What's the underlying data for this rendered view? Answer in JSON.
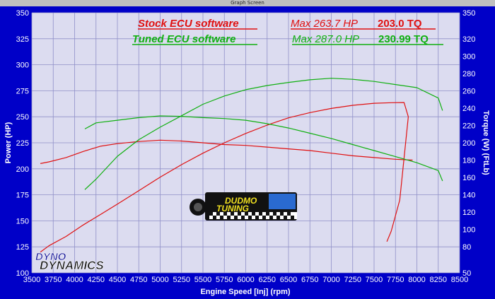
{
  "window": {
    "title": "Graph Screen"
  },
  "colors": {
    "stock": "#e01010",
    "tuned": "#10b010",
    "plot_bg": "#dcdcf0",
    "frame_bg": "#0000c8"
  },
  "legend": {
    "stock_label": "Stock ECU software",
    "tuned_label": "Tuned ECU software",
    "stock_max_hp": "Max 263.7 HP",
    "stock_max_tq": "203.0 TQ",
    "tuned_max_hp": "Max 287.0 HP",
    "tuned_max_tq": "230.99 TQ"
  },
  "logos": {
    "dyno_top": "DYNO",
    "dyno_bottom": "DYNAMICS",
    "tuner_top": "DUDMO",
    "tuner_bottom": "TUNING"
  },
  "chart_data": {
    "type": "line",
    "xlabel": "Engine Speed [Inj] (rpm)",
    "ylabel_left": "Power (HP)",
    "ylabel_right": "Torque (W) (FtLb)",
    "xlim": [
      3500,
      8500
    ],
    "ylim_left": [
      100,
      350
    ],
    "ylim_right": [
      50,
      350
    ],
    "x_ticks": [
      3500,
      3750,
      4000,
      4250,
      4500,
      4750,
      5000,
      5250,
      5500,
      5750,
      6000,
      6250,
      6500,
      6750,
      7000,
      7250,
      7500,
      7750,
      8000,
      8250,
      8500
    ],
    "y_left_ticks": [
      100,
      125,
      150,
      175,
      200,
      225,
      250,
      275,
      300,
      325,
      350
    ],
    "y_right_ticks": [
      50,
      80,
      100,
      120,
      140,
      160,
      180,
      200,
      220,
      240,
      260,
      280,
      300,
      320,
      350
    ],
    "grid": true,
    "series": [
      {
        "name": "Stock ECU software",
        "measure": "power",
        "axis": "left",
        "color": "#e01010",
        "x": [
          3600,
          3700,
          3900,
          4100,
          4300,
          4500,
          4750,
          5000,
          5250,
          5500,
          5750,
          6000,
          6250,
          6500,
          6750,
          7000,
          7250,
          7500,
          7700,
          7850,
          7900,
          7800,
          7700,
          7650
        ],
        "y": [
          120,
          126,
          135,
          146,
          156,
          166,
          179,
          192,
          204,
          215,
          225,
          234,
          242,
          249,
          254,
          258,
          261,
          263,
          263.5,
          263.7,
          250,
          170,
          140,
          130
        ]
      },
      {
        "name": "Stock ECU software",
        "measure": "torque",
        "axis": "right",
        "color": "#e01010",
        "x": [
          3600,
          3700,
          3900,
          4100,
          4300,
          4500,
          4750,
          5000,
          5250,
          5500,
          5750,
          6000,
          6250,
          6500,
          6750,
          7000,
          7250,
          7500,
          7750,
          7950
        ],
        "y": [
          176,
          178,
          183,
          190,
          196,
          199,
          201.5,
          203,
          202,
          200,
          198,
          197,
          195,
          193,
          191,
          188,
          185,
          183,
          181,
          180
        ]
      },
      {
        "name": "Tuned ECU software",
        "measure": "power",
        "axis": "left",
        "color": "#10b010",
        "x": [
          4120,
          4250,
          4500,
          4750,
          5000,
          5250,
          5500,
          5750,
          6000,
          6250,
          6500,
          6750,
          7000,
          7250,
          7500,
          7750,
          8000,
          8250,
          8300
        ],
        "y": [
          180,
          190,
          212,
          228,
          240,
          251,
          262,
          270,
          276,
          280,
          283,
          285.5,
          287,
          286,
          284,
          281,
          278,
          268,
          256
        ]
      },
      {
        "name": "Tuned ECU software",
        "measure": "torque",
        "axis": "right",
        "color": "#10b010",
        "x": [
          4120,
          4250,
          4500,
          4750,
          5000,
          5250,
          5500,
          5750,
          6000,
          6250,
          6500,
          6750,
          7000,
          7250,
          7500,
          7750,
          8000,
          8250,
          8300
        ],
        "y": [
          216,
          223,
          226,
          229,
          231,
          230.5,
          229,
          228,
          226,
          222,
          217,
          211,
          205,
          198,
          191,
          184,
          177,
          168,
          156
        ]
      }
    ]
  }
}
